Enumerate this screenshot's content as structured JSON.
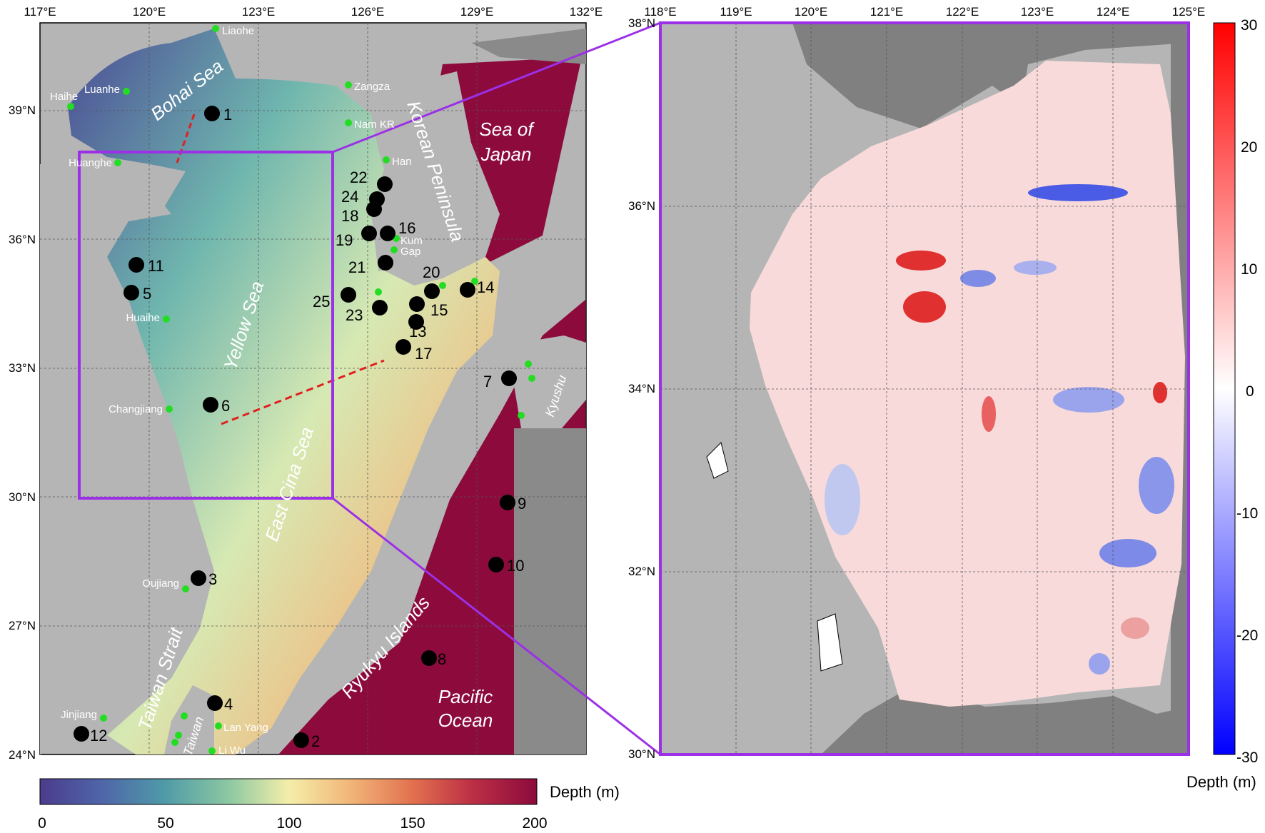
{
  "left_map": {
    "lon_ticks": [
      "117°E",
      "120°E",
      "123°E",
      "126°E",
      "129°E",
      "132°E"
    ],
    "lat_ticks": [
      "24°N",
      "27°N",
      "30°N",
      "33°N",
      "36°N",
      "39°N"
    ],
    "regions": [
      {
        "id": "bohai",
        "text": "Bohai Sea"
      },
      {
        "id": "yellow",
        "text": "Yellow Sea"
      },
      {
        "id": "ecs",
        "text": "East Cina Sea"
      },
      {
        "id": "korea",
        "text": "Korean Peninsula"
      },
      {
        "id": "japan1",
        "text": "Sea of"
      },
      {
        "id": "japan2",
        "text": "Japan"
      },
      {
        "id": "taiwanstrait",
        "text": "Taiwan Strait"
      },
      {
        "id": "taiwan",
        "text": "Taiwan"
      },
      {
        "id": "ryukyu",
        "text": "Ryukyu Islands"
      },
      {
        "id": "pacific1",
        "text": "Pacific"
      },
      {
        "id": "pacific2",
        "text": "Ocean"
      },
      {
        "id": "kyushu",
        "text": "Kyushu"
      }
    ],
    "rivers": [
      "Liaohe",
      "Luanhe",
      "Haihe",
      "Huanghe",
      "Zangza",
      "Nam KR",
      "Han",
      "Kum",
      "Gap",
      "Huaihe",
      "Changjiang",
      "Oujiang",
      "Jinjiang",
      "Lan Yang",
      "Li Wu"
    ],
    "stations": [
      "1",
      "2",
      "3",
      "4",
      "5",
      "6",
      "7",
      "8",
      "9",
      "10",
      "11",
      "12",
      "13",
      "14",
      "15",
      "16",
      "17",
      "18",
      "19",
      "20",
      "21",
      "22",
      "23",
      "24",
      "25"
    ],
    "colorbar": {
      "ticks": [
        "0",
        "50",
        "100",
        "150",
        "200"
      ],
      "title": "Depth (m)",
      "range": [
        0,
        200
      ]
    }
  },
  "right_map": {
    "lon_ticks": [
      "118°E",
      "119°E",
      "120°E",
      "121°E",
      "122°E",
      "123°E",
      "124°E",
      "125°E"
    ],
    "lat_ticks": [
      "30°N",
      "32°N",
      "34°N",
      "36°N",
      "38°N"
    ],
    "colorbar": {
      "ticks": [
        "30",
        "20",
        "10",
        "0",
        "-10",
        "-20",
        "-30"
      ],
      "title": "Depth (m)",
      "range": [
        -30,
        30
      ]
    }
  },
  "colors": {
    "land": "#b5b5b5",
    "dark_land": "#808080",
    "frame": "#9b30e6",
    "station": "#000000",
    "river_dot": "#22dd22",
    "section_line": "#e02020"
  }
}
